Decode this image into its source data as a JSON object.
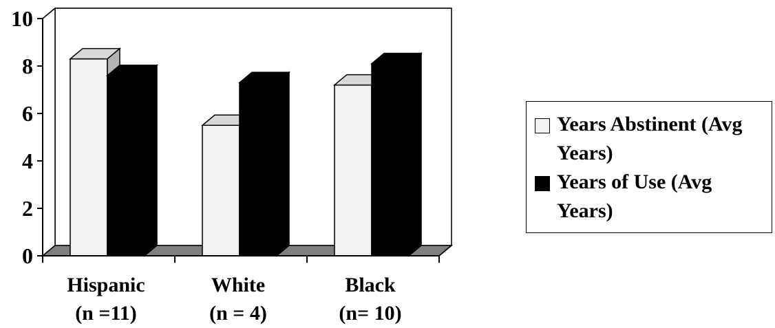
{
  "chart_data": {
    "type": "bar",
    "style": "3d-clustered",
    "categories": [
      "Hispanic\n(n =11)",
      "White\n(n = 4)",
      "Black\n(n= 10)"
    ],
    "series": [
      {
        "name": "Years Abstinent (Avg Years)",
        "values": [
          8.3,
          5.5,
          7.2
        ],
        "color": "#f2f0f0"
      },
      {
        "name": "Years of Use (Avg Years)",
        "values": [
          7.6,
          7.3,
          8.1
        ],
        "color": "#000000"
      }
    ],
    "yticks": [
      "0",
      "2",
      "4",
      "6",
      "8",
      "10"
    ],
    "ylim": [
      0,
      10
    ],
    "grid": true,
    "legend_position": "right",
    "title": "",
    "xlabel": "",
    "ylabel": ""
  }
}
